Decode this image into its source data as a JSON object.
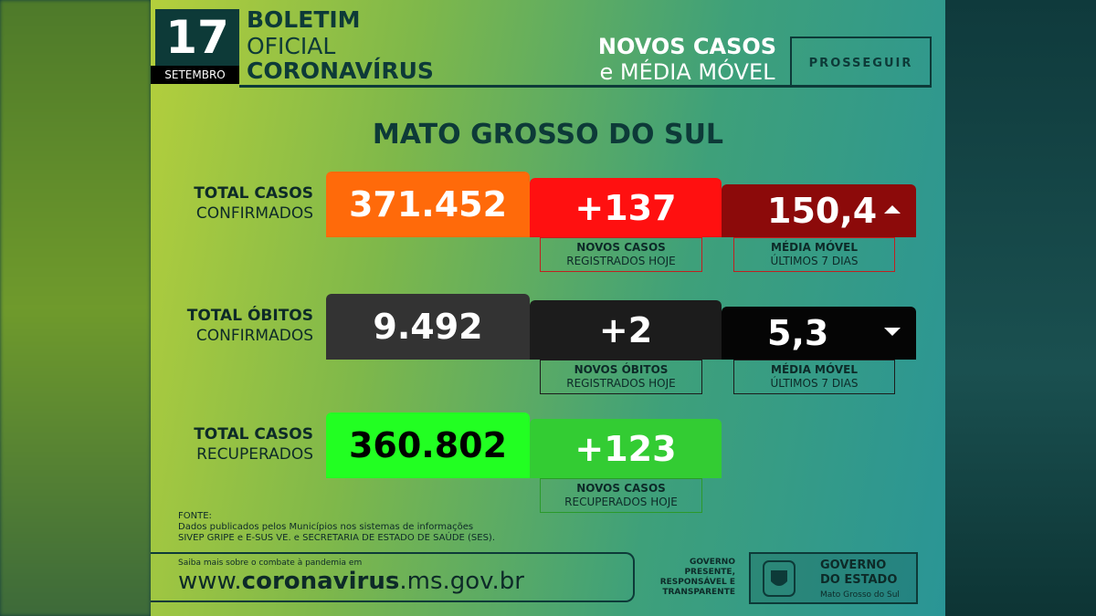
{
  "header": {
    "day": "17",
    "month": "SETEMBRO",
    "title_lines": [
      "BOLETIM",
      "OFICIAL",
      "CORONAVÍRUS"
    ],
    "subtitle_lines": [
      "NOVOS CASOS",
      "e MÉDIA MÓVEL"
    ],
    "brand": "PROSSEGUIR"
  },
  "region": "MATO GROSSO DO SUL",
  "rows": [
    {
      "label_lines": [
        "TOTAL CASOS",
        "CONFIRMADOS"
      ],
      "total": "371.452",
      "new": "+137",
      "new_caption": [
        "NOVOS CASOS",
        "REGISTRADOS HOJE"
      ],
      "average": "150,4",
      "average_caption": [
        "MÉDIA MÓVEL",
        "ÚLTIMOS 7 DIAS"
      ]
    },
    {
      "label_lines": [
        "TOTAL ÓBITOS",
        "CONFIRMADOS"
      ],
      "total": "9.492",
      "new": "+2",
      "new_caption": [
        "NOVOS ÓBITOS",
        "REGISTRADOS HOJE"
      ],
      "average": "5,3",
      "average_caption": [
        "MÉDIA MÓVEL",
        "ÚLTIMOS 7 DIAS"
      ]
    },
    {
      "label_lines": [
        "TOTAL CASOS",
        "RECUPERADOS"
      ],
      "total": "360.802",
      "new": "+123",
      "new_caption": [
        "NOVOS CASOS",
        "RECUPERADOS HOJE"
      ]
    }
  ],
  "source": {
    "title": "FONTE:",
    "lines": [
      "Dados publicados pelos Municípios nos sistemas de informações",
      "SIVEP GRIPE e E-SUS VE. e SECRETARIA DE ESTADO DE SAÚDE (SES)."
    ]
  },
  "footer": {
    "note": "Saiba mais sobre o combate à pandemia em",
    "url": [
      "www.",
      "coronavirus",
      ".ms.gov.br"
    ],
    "slogan_lines": [
      "GOVERNO",
      "PRESENTE,",
      "RESPONSÁVEL E",
      "TRANSPARENTE"
    ],
    "gov_lines": [
      "GOVERNO",
      "DO ESTADO",
      "Mato Grosso do Sul"
    ]
  }
}
